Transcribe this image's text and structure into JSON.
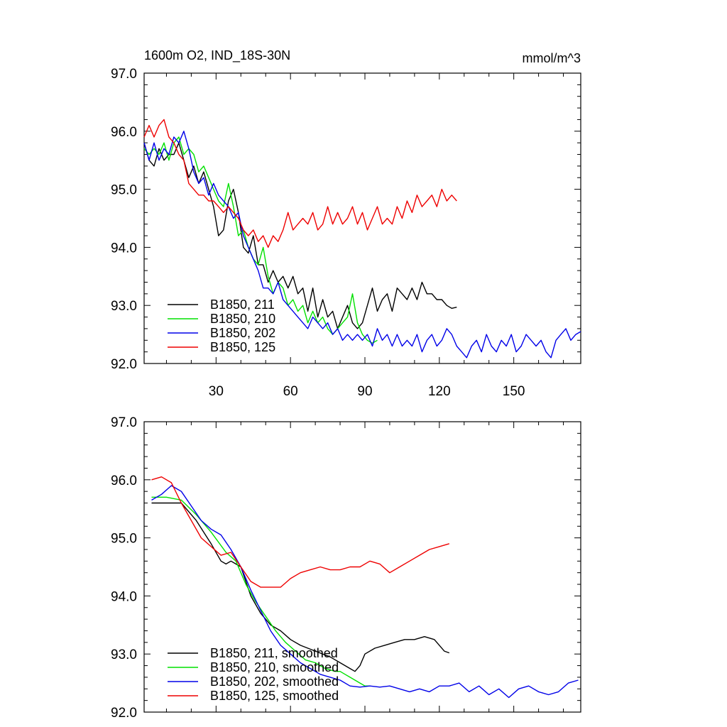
{
  "figure": {
    "title_left": "1600m O2, IND_18S-30N",
    "title_right": "mmol/m^3"
  },
  "chart_data": [
    {
      "type": "line",
      "panel": "top",
      "title": "1600m O2, IND_18S-30N",
      "units": "mmol/m^3",
      "xlim": [
        1,
        177
      ],
      "ylim": [
        92.0,
        97.0
      ],
      "xticks": [
        30,
        60,
        90,
        120,
        150
      ],
      "yticks": [
        "92.0",
        "93.0",
        "94.0",
        "95.0",
        "96.0",
        "97.0"
      ],
      "legend_position": "bottom-left",
      "series": [
        {
          "name": "B1850, 211",
          "color": "#000000",
          "x": [
            1,
            3,
            5,
            7,
            9,
            11,
            13,
            15,
            17,
            19,
            21,
            23,
            25,
            27,
            29,
            31,
            33,
            35,
            37,
            39,
            41,
            43,
            45,
            47,
            49,
            51,
            53,
            55,
            57,
            59,
            61,
            63,
            65,
            67,
            69,
            71,
            73,
            75,
            77,
            79,
            81,
            83,
            85,
            87,
            89,
            91,
            93,
            95,
            97,
            99,
            101,
            103,
            105,
            107,
            109,
            111,
            113,
            115,
            117,
            119,
            121,
            123,
            125,
            127
          ],
          "values": [
            95.8,
            95.5,
            95.4,
            95.7,
            95.5,
            95.6,
            95.6,
            95.8,
            95.5,
            95.2,
            95.4,
            95.1,
            95.3,
            95.0,
            94.7,
            94.2,
            94.3,
            94.8,
            95.0,
            94.6,
            94.0,
            93.9,
            94.2,
            93.7,
            93.7,
            93.4,
            93.6,
            93.4,
            93.5,
            93.3,
            93.5,
            93.2,
            93.3,
            92.9,
            93.3,
            92.8,
            93.1,
            92.8,
            92.9,
            92.6,
            92.8,
            93.0,
            92.7,
            92.6,
            92.7,
            93.0,
            93.3,
            92.9,
            93.1,
            93.2,
            92.9,
            93.3,
            93.2,
            93.1,
            93.3,
            93.1,
            93.4,
            93.2,
            93.2,
            93.1,
            93.1,
            93.0,
            92.95,
            92.97
          ]
        },
        {
          "name": "B1850, 210",
          "color": "#00e000",
          "x": [
            1,
            3,
            5,
            7,
            9,
            11,
            13,
            15,
            17,
            19,
            21,
            23,
            25,
            27,
            29,
            31,
            33,
            35,
            37,
            39,
            41,
            43,
            45,
            47,
            49,
            51,
            53,
            55,
            57,
            59,
            61,
            63,
            65,
            67,
            69,
            71,
            73,
            75,
            77,
            79,
            81,
            83,
            85,
            87,
            89,
            91,
            93,
            95
          ],
          "values": [
            95.7,
            95.6,
            95.7,
            95.6,
            95.8,
            95.5,
            95.8,
            95.9,
            95.6,
            95.7,
            95.6,
            95.3,
            95.4,
            95.2,
            95.0,
            94.8,
            94.7,
            95.1,
            94.7,
            94.2,
            94.3,
            94.0,
            93.8,
            93.7,
            94.0,
            93.5,
            93.2,
            93.4,
            93.3,
            93.0,
            93.1,
            92.9,
            93.0,
            92.7,
            92.9,
            92.7,
            92.8,
            92.6,
            92.5,
            92.6,
            92.7,
            92.8,
            93.2,
            92.7,
            92.5,
            92.4,
            92.35,
            92.4
          ]
        },
        {
          "name": "B1850, 202",
          "color": "#0000e8",
          "x": [
            1,
            3,
            5,
            7,
            9,
            11,
            13,
            15,
            17,
            19,
            21,
            23,
            25,
            27,
            29,
            31,
            33,
            35,
            37,
            39,
            41,
            43,
            45,
            47,
            49,
            51,
            53,
            55,
            57,
            59,
            61,
            63,
            65,
            67,
            69,
            71,
            73,
            75,
            77,
            79,
            81,
            83,
            85,
            87,
            89,
            91,
            93,
            95,
            97,
            99,
            101,
            103,
            105,
            107,
            109,
            111,
            113,
            115,
            117,
            119,
            121,
            123,
            125,
            127,
            129,
            131,
            133,
            135,
            137,
            139,
            141,
            143,
            145,
            147,
            149,
            151,
            153,
            155,
            157,
            159,
            161,
            163,
            165,
            167,
            169,
            171,
            173,
            175,
            177
          ],
          "values": [
            95.8,
            95.5,
            95.8,
            95.5,
            95.7,
            95.6,
            95.9,
            95.8,
            96.0,
            95.7,
            95.3,
            95.1,
            95.2,
            94.9,
            95.1,
            94.9,
            94.8,
            94.7,
            94.5,
            94.6,
            94.2,
            94.0,
            93.8,
            93.6,
            93.3,
            93.3,
            93.2,
            93.4,
            93.1,
            93.0,
            92.9,
            92.8,
            92.7,
            92.6,
            92.8,
            92.7,
            92.6,
            92.7,
            92.5,
            92.6,
            92.4,
            92.5,
            92.4,
            92.5,
            92.4,
            92.5,
            92.3,
            92.6,
            92.4,
            92.5,
            92.3,
            92.5,
            92.3,
            92.4,
            92.3,
            92.5,
            92.2,
            92.4,
            92.5,
            92.3,
            92.4,
            92.6,
            92.5,
            92.3,
            92.2,
            92.1,
            92.3,
            92.4,
            92.2,
            92.5,
            92.3,
            92.2,
            92.4,
            92.3,
            92.5,
            92.2,
            92.3,
            92.5,
            92.4,
            92.3,
            92.4,
            92.2,
            92.1,
            92.4,
            92.5,
            92.6,
            92.4,
            92.5,
            92.55
          ]
        },
        {
          "name": "B1850, 125",
          "color": "#ee0000",
          "x": [
            1,
            3,
            5,
            7,
            9,
            11,
            13,
            15,
            17,
            19,
            21,
            23,
            25,
            27,
            29,
            31,
            33,
            35,
            37,
            39,
            41,
            43,
            45,
            47,
            49,
            51,
            53,
            55,
            57,
            59,
            61,
            63,
            65,
            67,
            69,
            71,
            73,
            75,
            77,
            79,
            81,
            83,
            85,
            87,
            89,
            91,
            93,
            95,
            97,
            99,
            101,
            103,
            105,
            107,
            109,
            111,
            113,
            115,
            117,
            119,
            121,
            123,
            125,
            127
          ],
          "values": [
            95.9,
            96.1,
            95.9,
            96.1,
            96.2,
            95.9,
            95.8,
            95.6,
            95.5,
            95.1,
            95.0,
            94.9,
            94.9,
            94.8,
            94.8,
            94.7,
            94.6,
            94.7,
            94.6,
            94.5,
            94.3,
            94.2,
            94.3,
            94.1,
            94.2,
            94.0,
            94.2,
            94.1,
            94.3,
            94.6,
            94.3,
            94.4,
            94.5,
            94.4,
            94.6,
            94.3,
            94.4,
            94.7,
            94.4,
            94.6,
            94.4,
            94.5,
            94.7,
            94.4,
            94.6,
            94.3,
            94.5,
            94.7,
            94.4,
            94.5,
            94.4,
            94.7,
            94.5,
            94.8,
            94.6,
            94.9,
            94.7,
            94.8,
            94.9,
            94.7,
            95.0,
            94.8,
            94.9,
            94.8
          ]
        }
      ]
    },
    {
      "type": "line",
      "panel": "bottom",
      "xlim": [
        1,
        177
      ],
      "ylim": [
        92.0,
        97.0
      ],
      "yticks": [
        "92.0",
        "93.0",
        "94.0",
        "95.0",
        "96.0",
        "97.0"
      ],
      "legend_position": "bottom-left",
      "series": [
        {
          "name": "B1850, 211, smoothed",
          "color": "#000000",
          "x": [
            4,
            10,
            16,
            22,
            28,
            32,
            34,
            36,
            38,
            40,
            44,
            48,
            52,
            56,
            60,
            64,
            70,
            76,
            80,
            84,
            86,
            88,
            90,
            94,
            98,
            102,
            106,
            110,
            114,
            118,
            122,
            124
          ],
          "values": [
            95.6,
            95.6,
            95.6,
            95.3,
            94.9,
            94.6,
            94.55,
            94.6,
            94.55,
            94.5,
            94.0,
            93.7,
            93.5,
            93.4,
            93.25,
            93.15,
            93.05,
            92.95,
            92.85,
            92.75,
            92.7,
            92.8,
            93.0,
            93.1,
            93.15,
            93.2,
            93.25,
            93.25,
            93.3,
            93.25,
            93.05,
            93.02
          ]
        },
        {
          "name": "B1850, 210, smoothed",
          "color": "#00e000",
          "x": [
            4,
            10,
            16,
            22,
            28,
            34,
            38,
            42,
            46,
            50,
            54,
            58,
            62,
            66,
            70,
            74,
            78,
            80,
            82,
            84,
            86,
            88,
            90,
            92
          ],
          "values": [
            95.7,
            95.7,
            95.65,
            95.4,
            95.1,
            94.75,
            94.6,
            94.2,
            93.9,
            93.65,
            93.4,
            93.2,
            93.05,
            92.9,
            92.85,
            92.75,
            92.7,
            92.7,
            92.65,
            92.6,
            92.55,
            92.5,
            92.45,
            92.45
          ]
        },
        {
          "name": "B1850, 202, smoothed",
          "color": "#0000e8",
          "x": [
            4,
            8,
            12,
            16,
            20,
            24,
            28,
            32,
            36,
            40,
            44,
            48,
            52,
            56,
            60,
            64,
            68,
            72,
            76,
            80,
            84,
            88,
            92,
            96,
            100,
            104,
            108,
            112,
            116,
            120,
            124,
            128,
            132,
            136,
            140,
            144,
            148,
            152,
            156,
            160,
            164,
            168,
            172,
            176
          ],
          "values": [
            95.65,
            95.75,
            95.9,
            95.8,
            95.55,
            95.3,
            95.15,
            95.05,
            94.8,
            94.5,
            94.1,
            93.75,
            93.4,
            93.15,
            93.0,
            92.85,
            92.75,
            92.65,
            92.6,
            92.55,
            92.45,
            92.43,
            92.45,
            92.43,
            92.45,
            92.4,
            92.35,
            92.4,
            92.35,
            92.45,
            92.45,
            92.5,
            92.35,
            92.45,
            92.3,
            92.4,
            92.25,
            92.4,
            92.45,
            92.35,
            92.3,
            92.35,
            92.5,
            92.55
          ]
        },
        {
          "name": "B1850, 125, smoothed",
          "color": "#ee0000",
          "x": [
            4,
            8,
            12,
            16,
            20,
            24,
            28,
            32,
            36,
            40,
            44,
            48,
            52,
            56,
            60,
            64,
            68,
            72,
            76,
            80,
            84,
            88,
            92,
            96,
            100,
            104,
            108,
            112,
            116,
            120,
            124
          ],
          "values": [
            96.0,
            96.05,
            95.95,
            95.6,
            95.3,
            95.0,
            94.85,
            94.7,
            94.75,
            94.5,
            94.25,
            94.15,
            94.15,
            94.15,
            94.3,
            94.4,
            94.45,
            94.5,
            94.45,
            94.45,
            94.5,
            94.5,
            94.6,
            94.55,
            94.4,
            94.5,
            94.6,
            94.7,
            94.8,
            94.85,
            94.9
          ]
        }
      ]
    }
  ]
}
